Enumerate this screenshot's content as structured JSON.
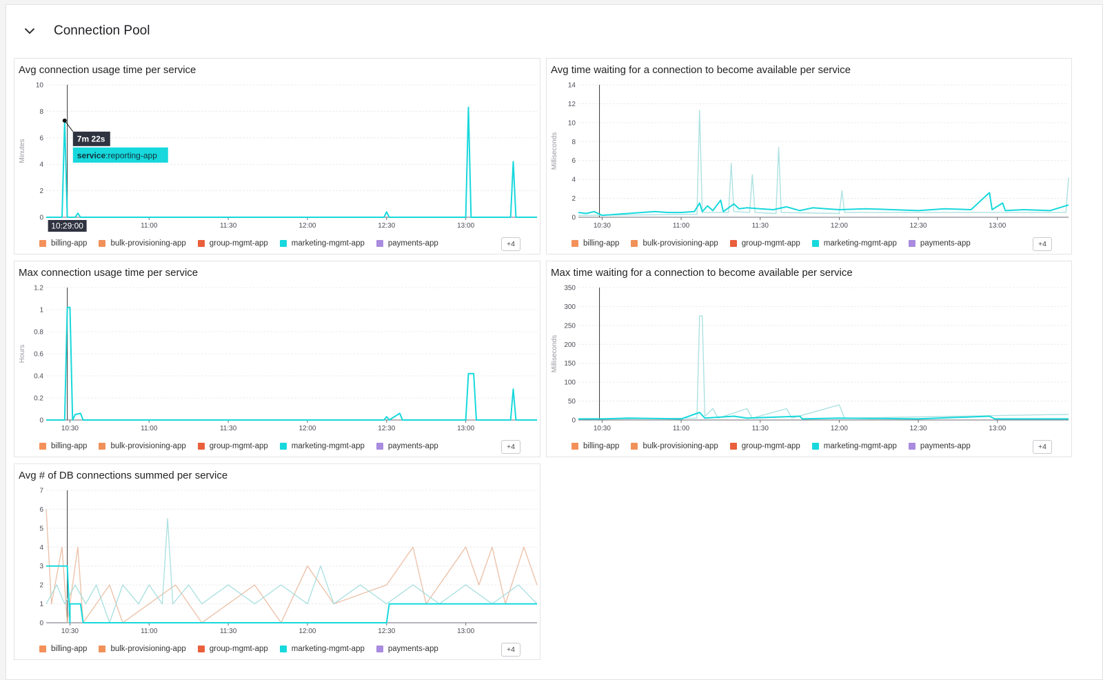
{
  "section": {
    "title": "Connection Pool"
  },
  "legend": {
    "items": [
      {
        "label": "billing-app",
        "color": "#f4915a"
      },
      {
        "label": "bulk-provisioning-app",
        "color": "#f0915a"
      },
      {
        "label": "group-mgmt-app",
        "color": "#ea5f3c"
      },
      {
        "label": "marketing-mgmt-app",
        "color": "#17d8dc"
      },
      {
        "label": "payments-app",
        "color": "#a98bdf"
      }
    ],
    "more": "+4"
  },
  "colors": {
    "accent": "#17d8dc",
    "faint_teal": "#9fdcdc",
    "faint_orange": "#e9b89c",
    "faint_purple": "#c4b2e3",
    "faint_gray": "#cfcfd6"
  },
  "chart_data": [
    {
      "type": "line",
      "title": "Avg connection usage time per service",
      "ylabel": "Minutes",
      "ylim": [
        0,
        10
      ],
      "yticks": [
        "0",
        "2",
        "4",
        "6",
        "8",
        "10"
      ],
      "xticks": [
        "11:00",
        "11:30",
        "12:00",
        "12:30",
        "13:00"
      ],
      "cursor_label": "10:29:00",
      "tooltip": {
        "value": "7m 22s",
        "tag_key": "service",
        "tag_value": ":reporting-app"
      },
      "series": [
        {
          "name": "reporting-app",
          "points": [
            [
              "10:21",
              0
            ],
            [
              "10:27",
              0
            ],
            [
              "10:28",
              7.3
            ],
            [
              "10:29",
              0
            ],
            [
              "10:32",
              0
            ],
            [
              "10:33",
              0.3
            ],
            [
              "10:34",
              0
            ],
            [
              "12:29",
              0
            ],
            [
              "12:30",
              0.4
            ],
            [
              "12:31",
              0
            ],
            [
              "13:00",
              0
            ],
            [
              "13:01",
              8.3
            ],
            [
              "13:02",
              0
            ],
            [
              "13:17",
              0
            ],
            [
              "13:18",
              4.2
            ],
            [
              "13:19",
              0
            ],
            [
              "13:27",
              0
            ]
          ]
        }
      ]
    },
    {
      "type": "line",
      "title": "Avg time waiting for a connection to become available per service",
      "ylabel": "Milliseconds",
      "ylim": [
        0,
        14
      ],
      "yticks": [
        "0",
        "2",
        "4",
        "6",
        "8",
        "10",
        "12",
        "14"
      ],
      "xticks": [
        "10:30",
        "11:00",
        "11:30",
        "12:00",
        "12:30",
        "13:00"
      ],
      "series": [
        {
          "name": "",
          "points": [
            [
              "10:21",
              0.5
            ],
            [
              "10:24",
              0.4
            ],
            [
              "10:27",
              0.6
            ],
            [
              "10:30",
              0.2
            ],
            [
              "10:35",
              0.3
            ],
            [
              "10:40",
              0.4
            ],
            [
              "10:45",
              0.5
            ],
            [
              "10:50",
              0.6
            ],
            [
              "10:55",
              0.5
            ],
            [
              "11:00",
              0.5
            ],
            [
              "11:05",
              0.6
            ],
            [
              "11:07",
              1.5
            ],
            [
              "11:08",
              0.6
            ],
            [
              "11:10",
              1.2
            ],
            [
              "11:12",
              0.7
            ],
            [
              "11:15",
              1.8
            ],
            [
              "11:16",
              0.6
            ],
            [
              "11:20",
              1.4
            ],
            [
              "11:22",
              0.9
            ],
            [
              "11:25",
              1.0
            ],
            [
              "11:30",
              0.9
            ],
            [
              "11:35",
              0.8
            ],
            [
              "11:40",
              1.1
            ],
            [
              "11:45",
              0.7
            ],
            [
              "11:50",
              1.0
            ],
            [
              "11:55",
              0.9
            ],
            [
              "12:00",
              0.8
            ],
            [
              "12:10",
              0.9
            ],
            [
              "12:20",
              0.8
            ],
            [
              "12:30",
              0.7
            ],
            [
              "12:40",
              0.9
            ],
            [
              "12:50",
              0.8
            ],
            [
              "12:57",
              2.6
            ],
            [
              "12:58",
              0.8
            ],
            [
              "13:02",
              1.5
            ],
            [
              "13:03",
              0.7
            ],
            [
              "13:10",
              0.8
            ],
            [
              "13:20",
              0.7
            ],
            [
              "13:27",
              1.3
            ]
          ]
        },
        {
          "name": "",
          "points": [
            [
              "10:21",
              0.2
            ],
            [
              "11:06",
              0.3
            ],
            [
              "11:07",
              11.3
            ],
            [
              "11:08",
              0.5
            ],
            [
              "11:18",
              0.5
            ],
            [
              "11:19",
              5.7
            ],
            [
              "11:20",
              0.6
            ],
            [
              "11:26",
              0.5
            ],
            [
              "11:27",
              4.5
            ],
            [
              "11:28",
              0.5
            ],
            [
              "11:36",
              0.4
            ],
            [
              "11:37",
              7.4
            ],
            [
              "11:38",
              0.5
            ],
            [
              "12:00",
              0.4
            ],
            [
              "12:01",
              2.8
            ],
            [
              "12:02",
              0.5
            ],
            [
              "13:26",
              0.5
            ],
            [
              "13:27",
              4.2
            ]
          ]
        }
      ]
    },
    {
      "type": "line",
      "title": "Max connection usage time per service",
      "ylabel": "Hours",
      "ylim": [
        0,
        1.2
      ],
      "yticks": [
        "0",
        "0.2",
        "0.4",
        "0.6",
        "0.8",
        "1",
        "1.2"
      ],
      "xticks": [
        "10:30",
        "11:00",
        "11:30",
        "12:00",
        "12:30",
        "13:00"
      ],
      "series": [
        {
          "name": "",
          "points": [
            [
              "10:21",
              0
            ],
            [
              "10:28",
              0
            ],
            [
              "10:29",
              1.02
            ],
            [
              "10:30",
              1.02
            ],
            [
              "10:31",
              0
            ],
            [
              "10:32",
              0.05
            ],
            [
              "10:34",
              0.06
            ],
            [
              "10:35",
              0
            ],
            [
              "12:29",
              0
            ],
            [
              "12:30",
              0.03
            ],
            [
              "12:31",
              0
            ],
            [
              "12:35",
              0.06
            ],
            [
              "12:36",
              0
            ],
            [
              "13:00",
              0
            ],
            [
              "13:01",
              0.42
            ],
            [
              "13:03",
              0.42
            ],
            [
              "13:04",
              0
            ],
            [
              "13:17",
              0
            ],
            [
              "13:18",
              0.28
            ],
            [
              "13:19",
              0
            ],
            [
              "13:27",
              0
            ]
          ]
        }
      ]
    },
    {
      "type": "line",
      "title": "Max time waiting for a connection to become available per service",
      "ylabel": "Milliseconds",
      "ylim": [
        0,
        350
      ],
      "yticks": [
        "0",
        "50",
        "100",
        "150",
        "200",
        "250",
        "300",
        "350"
      ],
      "xticks": [
        "10:30",
        "11:00",
        "11:30",
        "12:00",
        "12:30",
        "13:00"
      ],
      "series": [
        {
          "name": "",
          "points": [
            [
              "10:21",
              3
            ],
            [
              "10:30",
              3
            ],
            [
              "10:40",
              5
            ],
            [
              "11:00",
              3
            ],
            [
              "11:07",
              20
            ],
            [
              "11:09",
              5
            ],
            [
              "11:20",
              10
            ],
            [
              "11:25",
              5
            ],
            [
              "11:45",
              10
            ],
            [
              "11:46",
              3
            ],
            [
              "12:00",
              5
            ],
            [
              "12:30",
              3
            ],
            [
              "12:57",
              10
            ],
            [
              "12:59",
              3
            ],
            [
              "13:27",
              3
            ]
          ]
        },
        {
          "name": "",
          "points": [
            [
              "10:21",
              2
            ],
            [
              "11:06",
              5
            ],
            [
              "11:07",
              275
            ],
            [
              "11:08",
              275
            ],
            [
              "11:09",
              10
            ],
            [
              "11:12",
              30
            ],
            [
              "11:14",
              5
            ],
            [
              "11:25",
              30
            ],
            [
              "11:27",
              5
            ],
            [
              "11:40",
              30
            ],
            [
              "11:42",
              5
            ],
            [
              "12:00",
              40
            ],
            [
              "12:02",
              5
            ],
            [
              "13:27",
              15
            ]
          ]
        }
      ]
    },
    {
      "type": "line",
      "title": "Avg # of DB connections summed per service",
      "ylim": [
        0,
        7
      ],
      "yticks": [
        "0",
        "1",
        "2",
        "3",
        "4",
        "5",
        "6",
        "7"
      ],
      "xticks": [
        "10:30",
        "11:00",
        "11:30",
        "12:00",
        "12:30",
        "13:00"
      ],
      "series": [
        {
          "name": "",
          "points": [
            [
              "10:21",
              3
            ],
            [
              "10:29",
              3
            ],
            [
              "10:30",
              0
            ],
            [
              "10:30",
              1
            ],
            [
              "10:34",
              1
            ],
            [
              "10:35",
              0
            ],
            [
              "12:30",
              0
            ],
            [
              "12:31",
              1
            ],
            [
              "13:27",
              1
            ]
          ]
        },
        {
          "name": "",
          "points": [
            [
              "10:21",
              1
            ],
            [
              "10:25",
              2
            ],
            [
              "10:28",
              1
            ],
            [
              "10:32",
              2
            ],
            [
              "10:36",
              1
            ],
            [
              "10:40",
              2
            ],
            [
              "10:45",
              0
            ],
            [
              "10:50",
              2
            ],
            [
              "10:56",
              1
            ],
            [
              "11:00",
              2
            ],
            [
              "11:05",
              1
            ],
            [
              "11:07",
              5.5
            ],
            [
              "11:09",
              1
            ],
            [
              "11:15",
              2
            ],
            [
              "11:20",
              1
            ],
            [
              "11:30",
              2
            ],
            [
              "11:40",
              1
            ],
            [
              "11:50",
              2
            ],
            [
              "12:00",
              1
            ],
            [
              "12:05",
              3
            ],
            [
              "12:10",
              1
            ],
            [
              "12:20",
              2
            ],
            [
              "12:30",
              1
            ],
            [
              "12:40",
              2
            ],
            [
              "12:50",
              1
            ],
            [
              "13:00",
              2
            ],
            [
              "13:10",
              1
            ],
            [
              "13:20",
              2
            ],
            [
              "13:27",
              1
            ]
          ]
        },
        {
          "name": "",
          "points": [
            [
              "10:21",
              6
            ],
            [
              "10:23",
              1
            ],
            [
              "10:27",
              4
            ],
            [
              "10:29",
              0
            ],
            [
              "10:33",
              4
            ],
            [
              "10:35",
              0
            ],
            [
              "10:45",
              2
            ],
            [
              "10:50",
              0
            ],
            [
              "11:00",
              1
            ],
            [
              "11:10",
              2
            ],
            [
              "11:20",
              0
            ],
            [
              "11:40",
              2
            ],
            [
              "11:50",
              0
            ],
            [
              "12:00",
              3
            ],
            [
              "12:10",
              1
            ],
            [
              "12:30",
              2
            ],
            [
              "12:40",
              4
            ],
            [
              "12:45",
              1
            ],
            [
              "13:00",
              4
            ],
            [
              "13:05",
              2
            ],
            [
              "13:10",
              4
            ],
            [
              "13:15",
              1
            ],
            [
              "13:22",
              4
            ],
            [
              "13:27",
              2
            ]
          ]
        }
      ]
    }
  ]
}
